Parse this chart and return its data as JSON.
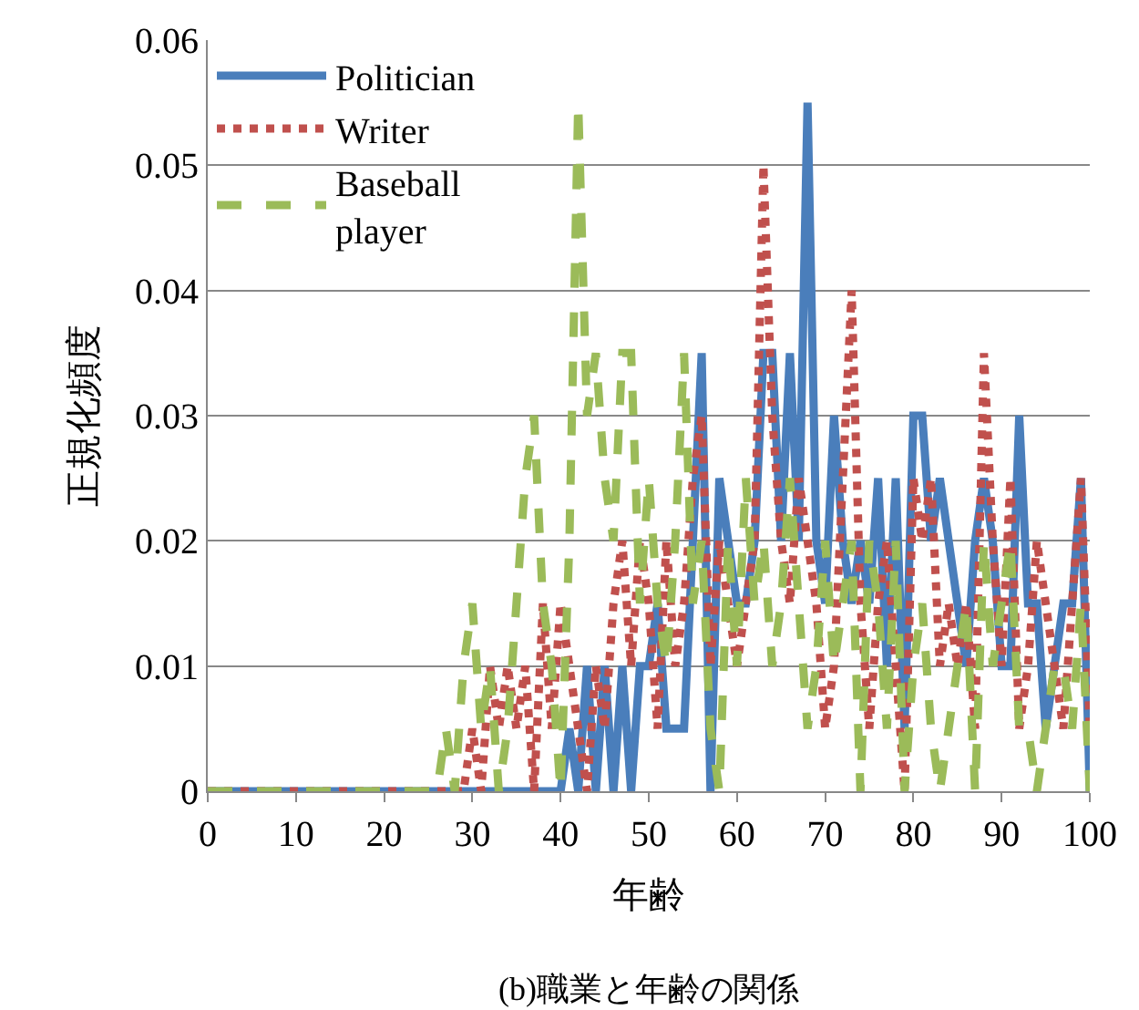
{
  "chart_data": {
    "type": "line",
    "title": "(b)職業と年齢の関係",
    "xlabel": "年齢",
    "ylabel": "正規化頻度",
    "x": [
      0,
      1,
      2,
      3,
      4,
      5,
      6,
      7,
      8,
      9,
      10,
      11,
      12,
      13,
      14,
      15,
      16,
      17,
      18,
      19,
      20,
      21,
      22,
      23,
      24,
      25,
      26,
      27,
      28,
      29,
      30,
      31,
      32,
      33,
      34,
      35,
      36,
      37,
      38,
      39,
      40,
      41,
      42,
      43,
      44,
      45,
      46,
      47,
      48,
      49,
      50,
      51,
      52,
      53,
      54,
      55,
      56,
      57,
      58,
      59,
      60,
      61,
      62,
      63,
      64,
      65,
      66,
      67,
      68,
      69,
      70,
      71,
      72,
      73,
      74,
      75,
      76,
      77,
      78,
      79,
      80,
      81,
      82,
      83,
      84,
      85,
      86,
      87,
      88,
      89,
      90,
      91,
      92,
      93,
      94,
      95,
      96,
      97,
      98,
      99,
      100
    ],
    "series": [
      {
        "name": "Politician",
        "color": "#4a7ebb",
        "line_style": "solid",
        "values": [
          0,
          0,
          0,
          0,
          0,
          0,
          0,
          0,
          0,
          0,
          0,
          0,
          0,
          0,
          0,
          0,
          0,
          0,
          0,
          0,
          0,
          0,
          0,
          0,
          0,
          0,
          0,
          0,
          0,
          0,
          0,
          0,
          0,
          0,
          0,
          0,
          0,
          0,
          0,
          0,
          0,
          0.005,
          0,
          0.01,
          0,
          0.01,
          0,
          0.01,
          0,
          0.01,
          0.01,
          0.015,
          0.005,
          0.005,
          0.005,
          0.02,
          0.035,
          0,
          0.025,
          0.02,
          0.015,
          0.015,
          0.02,
          0.035,
          0.035,
          0.02,
          0.035,
          0.02,
          0.055,
          0.02,
          0.015,
          0.03,
          0.02,
          0.015,
          0.02,
          0.015,
          0.025,
          0.01,
          0.025,
          0.005,
          0.03,
          0.03,
          0.02,
          0.025,
          0.02,
          0.015,
          0.01,
          0.02,
          0.025,
          0.02,
          0.01,
          0.01,
          0.03,
          0.015,
          0.015,
          0.005,
          0.01,
          0.015,
          0.015,
          0.025,
          0
        ]
      },
      {
        "name": "Writer",
        "color": "#c0504d",
        "line_style": "dotted",
        "values": [
          0,
          0,
          0,
          0,
          0,
          0,
          0,
          0,
          0,
          0,
          0,
          0,
          0,
          0,
          0,
          0,
          0,
          0,
          0,
          0,
          0,
          0,
          0,
          0,
          0,
          0,
          0,
          0,
          0,
          0,
          0.005,
          0,
          0.01,
          0.005,
          0.01,
          0.005,
          0.01,
          0,
          0.015,
          0.005,
          0.015,
          0.01,
          0.005,
          0,
          0.01,
          0.005,
          0.015,
          0.02,
          0.01,
          0.02,
          0.015,
          0.005,
          0.02,
          0.01,
          0.015,
          0.025,
          0.03,
          0.01,
          0.02,
          0.015,
          0.01,
          0.015,
          0.02,
          0.05,
          0.03,
          0.02,
          0.015,
          0.025,
          0.02,
          0.015,
          0.005,
          0.01,
          0.025,
          0.04,
          0.015,
          0.005,
          0.015,
          0.02,
          0.01,
          0,
          0.025,
          0.02,
          0.025,
          0.01,
          0.015,
          0.01,
          0.015,
          0.005,
          0.035,
          0.02,
          0.01,
          0.025,
          0.005,
          0.01,
          0.02,
          0.015,
          0.01,
          0.005,
          0.015,
          0.025,
          0.005
        ]
      },
      {
        "name": "Baseball\nplayer",
        "color": "#9bbb59",
        "line_style": "dashed",
        "values": [
          0,
          0,
          0,
          0,
          0,
          0,
          0,
          0,
          0,
          0,
          0,
          0,
          0,
          0,
          0,
          0,
          0,
          0,
          0,
          0,
          0,
          0,
          0,
          0,
          0,
          0,
          0,
          0.005,
          0,
          0.01,
          0.015,
          0.005,
          0.01,
          0,
          0.005,
          0.015,
          0.025,
          0.03,
          0.015,
          0.01,
          0,
          0.02,
          0.055,
          0.03,
          0.035,
          0.025,
          0.02,
          0.035,
          0.035,
          0.015,
          0.025,
          0.015,
          0.01,
          0.02,
          0.035,
          0.015,
          0.02,
          0.005,
          0,
          0.02,
          0.01,
          0.025,
          0.015,
          0.02,
          0.01,
          0.015,
          0.025,
          0.015,
          0.005,
          0.01,
          0.02,
          0.01,
          0.015,
          0.02,
          0,
          0.02,
          0.015,
          0.005,
          0.02,
          0,
          0.01,
          0.015,
          0.005,
          0,
          0.005,
          0.01,
          0.015,
          0,
          0.02,
          0.01,
          0.015,
          0.02,
          0.005,
          0.005,
          0,
          0.005,
          0.01,
          0.01,
          0.005,
          0.015,
          0
        ]
      }
    ],
    "xlim": [
      0,
      100
    ],
    "xticks": [
      0,
      10,
      20,
      30,
      40,
      50,
      60,
      70,
      80,
      90,
      100
    ],
    "ylim": [
      0,
      0.06
    ],
    "yticks": [
      0,
      0.01,
      0.02,
      0.03,
      0.04,
      0.05,
      0.06
    ],
    "grid": "y",
    "legend": "top left",
    "marker": "none"
  }
}
